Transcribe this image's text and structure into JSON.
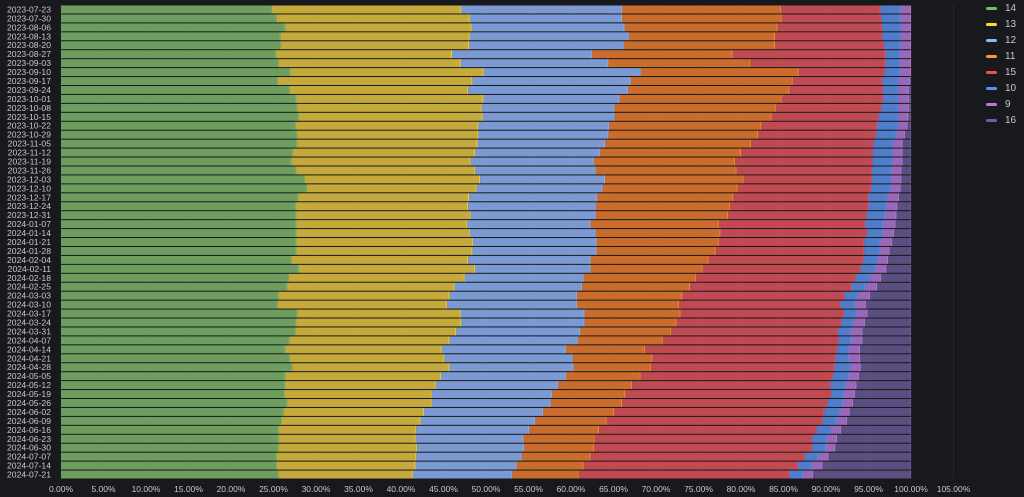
{
  "chart_data": {
    "type": "bar",
    "orientation": "horizontal",
    "stacking": "percent",
    "title": "",
    "xlabel": "",
    "ylabel": "",
    "xlim": [
      0,
      105
    ],
    "x_tick_labels": [
      "0.00%",
      "5.00%",
      "10.00%",
      "15.00%",
      "20.00%",
      "25.00%",
      "30.00%",
      "35.00%",
      "40.00%",
      "45.00%",
      "50.00%",
      "55.00%",
      "60.00%",
      "65.00%",
      "70.00%",
      "75.00%",
      "80.00%",
      "85.00%",
      "90.00%",
      "95.00%",
      "100.00%",
      "105.00%"
    ],
    "legend_position": "right",
    "categories": [
      "2023-07-23",
      "2023-07-30",
      "2023-08-06",
      "2023-08-13",
      "2023-08-20",
      "2023-08-27",
      "2023-09-03",
      "2023-09-10",
      "2023-09-17",
      "2023-09-24",
      "2023-10-01",
      "2023-10-08",
      "2023-10-15",
      "2023-10-22",
      "2023-10-29",
      "2023-11-05",
      "2023-11-12",
      "2023-11-19",
      "2023-11-26",
      "2023-12-03",
      "2023-12-10",
      "2023-12-17",
      "2023-12-24",
      "2023-12-31",
      "2024-01-07",
      "2024-01-14",
      "2024-01-21",
      "2024-01-28",
      "2024-02-04",
      "2024-02-11",
      "2024-02-18",
      "2024-02-25",
      "2024-03-03",
      "2024-03-10",
      "2024-03-17",
      "2024-03-24",
      "2024-03-31",
      "2024-04-07",
      "2024-04-14",
      "2024-04-21",
      "2024-04-28",
      "2024-05-05",
      "2024-05-12",
      "2024-05-19",
      "2024-05-26",
      "2024-06-02",
      "2024-06-09",
      "2024-06-16",
      "2024-06-23",
      "2024-06-30",
      "2024-07-07",
      "2024-07-14",
      "2024-07-21"
    ],
    "series": [
      {
        "name": "14",
        "color": "#6e9e5f",
        "legend_color": "#73bf69",
        "values": [
          24.8,
          25.4,
          26.4,
          25.8,
          25.9,
          25.3,
          25.6,
          27.0,
          25.5,
          26.9,
          27.7,
          27.8,
          28.0,
          27.6,
          27.8,
          27.8,
          27.3,
          27.1,
          27.7,
          28.7,
          28.9,
          27.9,
          27.6,
          27.7,
          27.7,
          27.7,
          27.7,
          27.7,
          27.1,
          28.0,
          26.8,
          26.6,
          25.6,
          25.5,
          27.8,
          27.7,
          27.6,
          26.9,
          26.4,
          26.9,
          27.2,
          26.4,
          26.4,
          26.3,
          26.6,
          26.2,
          26.0,
          25.6,
          25.6,
          25.6,
          25.4,
          25.4,
          25.6
        ]
      },
      {
        "name": "13",
        "color": "#c6a93b",
        "legend_color": "#fade2a",
        "values": [
          22.3,
          22.7,
          21.9,
          22.3,
          22.1,
          20.7,
          21.4,
          22.7,
          22.9,
          21.0,
          22.0,
          21.7,
          21.6,
          21.5,
          21.3,
          21.2,
          21.4,
          21.1,
          21.0,
          20.6,
          20.0,
          20.1,
          20.3,
          20.5,
          20.1,
          20.4,
          20.8,
          20.7,
          20.8,
          20.7,
          20.7,
          19.7,
          20.1,
          19.9,
          19.2,
          19.4,
          18.9,
          18.8,
          18.4,
          18.2,
          18.5,
          18.3,
          17.7,
          17.3,
          17.0,
          16.5,
          16.3,
          16.2,
          16.1,
          16.3,
          16.4,
          16.3,
          15.8
        ]
      },
      {
        "name": "12",
        "color": "#7b99d2",
        "legend_color": "#8ab8ff",
        "values": [
          18.9,
          17.9,
          18.0,
          18.7,
          18.2,
          16.5,
          17.4,
          18.5,
          18.6,
          18.8,
          16.0,
          15.6,
          15.5,
          15.4,
          15.3,
          15.0,
          14.7,
          14.5,
          14.2,
          14.7,
          14.8,
          15.1,
          15.0,
          14.7,
          14.5,
          14.8,
          14.5,
          14.6,
          14.4,
          13.6,
          14.0,
          15.0,
          15.0,
          15.3,
          14.6,
          14.5,
          14.6,
          15.1,
          14.6,
          15.1,
          14.6,
          14.7,
          14.4,
          14.2,
          14.0,
          14.0,
          13.5,
          13.3,
          12.7,
          12.6,
          12.4,
          11.9,
          11.7
        ]
      },
      {
        "name": "11",
        "color": "#c96c2c",
        "legend_color": "#ff9830",
        "values": [
          18.7,
          18.8,
          18.0,
          17.2,
          17.8,
          16.5,
          16.7,
          18.6,
          19.1,
          19.0,
          19.1,
          19.0,
          18.5,
          17.9,
          17.6,
          17.2,
          16.6,
          16.6,
          16.6,
          16.3,
          15.9,
          16.0,
          15.8,
          15.6,
          15.1,
          14.7,
          14.4,
          14.0,
          13.9,
          13.2,
          13.2,
          12.7,
          12.4,
          12.0,
          11.3,
          10.8,
          10.7,
          10.0,
          9.3,
          9.4,
          9.1,
          8.8,
          8.7,
          8.6,
          8.4,
          8.4,
          8.4,
          8.2,
          8.4,
          8.2,
          8.1,
          7.9,
          7.8
        ]
      },
      {
        "name": "15",
        "color": "#bf4a52",
        "legend_color": "#f2495c",
        "values": [
          11.7,
          11.7,
          12.3,
          12.6,
          12.8,
          18.0,
          15.9,
          10.1,
          10.5,
          11.0,
          11.9,
          12.4,
          12.6,
          13.6,
          13.9,
          14.4,
          15.5,
          16.2,
          15.9,
          15.1,
          15.7,
          15.9,
          16.3,
          16.3,
          17.2,
          17.2,
          17.1,
          17.5,
          18.2,
          18.6,
          18.8,
          19.0,
          19.1,
          19.0,
          19.2,
          19.4,
          19.6,
          20.7,
          22.6,
          21.5,
          21.6,
          22.6,
          23.3,
          24.2,
          24.2,
          24.7,
          25.4,
          25.6,
          25.6,
          25.7,
          25.2,
          25.2,
          24.8
        ]
      },
      {
        "name": "10",
        "color": "#4e7ecb",
        "legend_color": "#5794f2",
        "values": [
          2.3,
          2.2,
          2.2,
          2.2,
          1.9,
          1.7,
          1.7,
          1.8,
          1.9,
          1.8,
          1.8,
          2.0,
          2.3,
          2.5,
          2.3,
          2.3,
          2.3,
          2.3,
          2.3,
          2.3,
          2.3,
          2.2,
          2.1,
          2.2,
          2.1,
          1.9,
          1.9,
          1.8,
          1.7,
          1.7,
          1.7,
          1.6,
          1.6,
          1.7,
          1.5,
          1.4,
          1.5,
          1.5,
          1.4,
          1.6,
          1.9,
          1.9,
          1.8,
          1.5,
          1.8,
          1.8,
          1.7,
          1.7,
          1.7,
          1.6,
          1.6,
          1.6,
          1.6
        ]
      },
      {
        "name": "9",
        "color": "#9a68b8",
        "legend_color": "#b877d9",
        "values": [
          1.3,
          1.3,
          1.2,
          1.2,
          1.3,
          1.3,
          1.3,
          1.3,
          1.4,
          1.3,
          1.3,
          1.3,
          1.2,
          1.1,
          1.1,
          1.1,
          1.2,
          1.2,
          1.2,
          1.2,
          1.2,
          1.4,
          1.3,
          1.3,
          1.5,
          1.3,
          1.4,
          1.2,
          1.2,
          1.3,
          1.3,
          1.4,
          1.4,
          1.3,
          1.3,
          1.4,
          1.4,
          1.3,
          1.3,
          1.3,
          1.2,
          1.2,
          1.3,
          1.3,
          1.2,
          1.2,
          1.2,
          1.2,
          1.2,
          1.1,
          1.2,
          1.3,
          1.2
        ]
      },
      {
        "name": "16",
        "color": "#5a4f80",
        "legend_color": "#705da0",
        "values": [
          0,
          0,
          0,
          0,
          0,
          0,
          0,
          0,
          0.1,
          0.2,
          0.2,
          0.2,
          0.3,
          0.4,
          0.7,
          1.0,
          1.0,
          1.0,
          1.1,
          1.1,
          1.2,
          1.4,
          1.6,
          1.7,
          1.8,
          2.0,
          2.2,
          2.5,
          2.7,
          2.9,
          3.5,
          4.0,
          4.8,
          5.3,
          5.1,
          5.4,
          5.7,
          5.7,
          6.0,
          6.0,
          5.9,
          6.1,
          6.4,
          6.6,
          6.8,
          7.2,
          7.5,
          8.2,
          8.7,
          8.9,
          9.7,
          10.4,
          11.5
        ]
      }
    ]
  }
}
